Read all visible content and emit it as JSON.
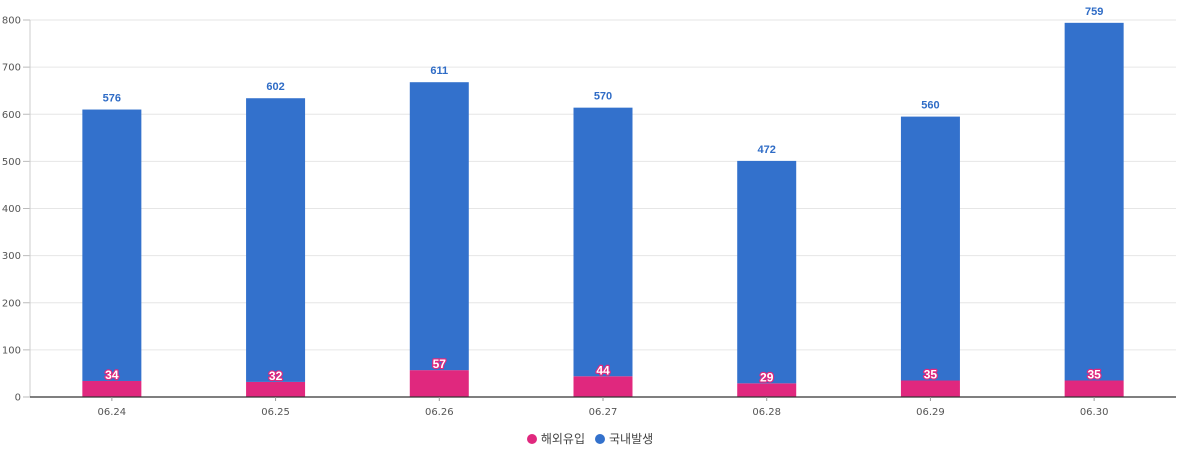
{
  "chart_data": {
    "type": "bar",
    "stacked": true,
    "categories": [
      "06.24",
      "06.25",
      "06.26",
      "06.27",
      "06.28",
      "06.29",
      "06.30"
    ],
    "series": [
      {
        "name": "해외유입",
        "values": [
          34,
          32,
          57,
          44,
          29,
          35,
          35
        ],
        "color": "#e0287e"
      },
      {
        "name": "국내발생",
        "values": [
          576,
          602,
          611,
          570,
          472,
          560,
          759
        ],
        "color": "#3371cc"
      }
    ],
    "ylim": [
      0,
      800
    ],
    "yticks": [
      0,
      100,
      200,
      300,
      400,
      500,
      600,
      700,
      800
    ],
    "grid": true,
    "legend_position": "bottom-center",
    "title": "",
    "xlabel": "",
    "ylabel": ""
  }
}
